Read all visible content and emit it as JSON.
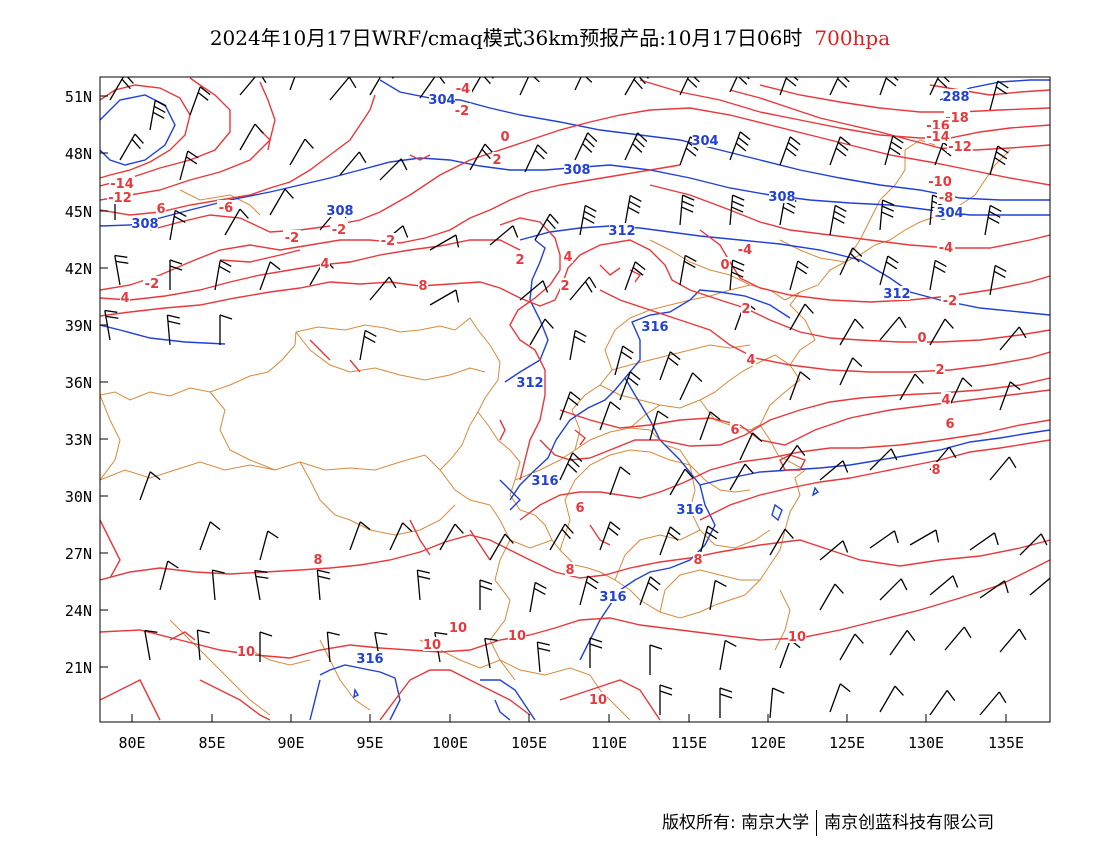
{
  "title": {
    "main": "2024年10月17日WRF/cmaq模式36km预报产品:10月17日06时",
    "level": "700hpa"
  },
  "colors": {
    "temperature": "#e8383b",
    "geopotential": "#2040d8",
    "boundary": "#d98a3a",
    "wind": "#000000"
  },
  "axes": {
    "lat_labels": [
      "51N",
      "48N",
      "45N",
      "42N",
      "39N",
      "36N",
      "33N",
      "30N",
      "27N",
      "24N",
      "21N"
    ],
    "lon_labels": [
      "80E",
      "85E",
      "90E",
      "95E",
      "100E",
      "105E",
      "110E",
      "115E",
      "120E",
      "125E",
      "130E",
      "135E"
    ]
  },
  "isotherm_labels": [
    "-18",
    "-16",
    "-14",
    "-14",
    "-12",
    "-12",
    "-10",
    "-8",
    "-6",
    "-6",
    "-4",
    "-4",
    "-4",
    "-2",
    "-2",
    "-2",
    "-2",
    "-2",
    "-2",
    "0",
    "0",
    "0",
    "2",
    "2",
    "2",
    "2",
    "2",
    "4",
    "4",
    "4",
    "4",
    "4",
    "6",
    "6",
    "6",
    "6",
    "6",
    "8",
    "8",
    "8",
    "8",
    "8",
    "10",
    "10",
    "10",
    "10",
    "10",
    "10"
  ],
  "height_labels": [
    "288",
    "304",
    "304",
    "304",
    "308",
    "308",
    "308",
    "308",
    "312",
    "312",
    "312",
    "316",
    "316",
    "316",
    "316",
    "316"
  ],
  "footer": {
    "left": "版权所有: 南京大学",
    "right": "南京创蓝科技有限公司"
  }
}
